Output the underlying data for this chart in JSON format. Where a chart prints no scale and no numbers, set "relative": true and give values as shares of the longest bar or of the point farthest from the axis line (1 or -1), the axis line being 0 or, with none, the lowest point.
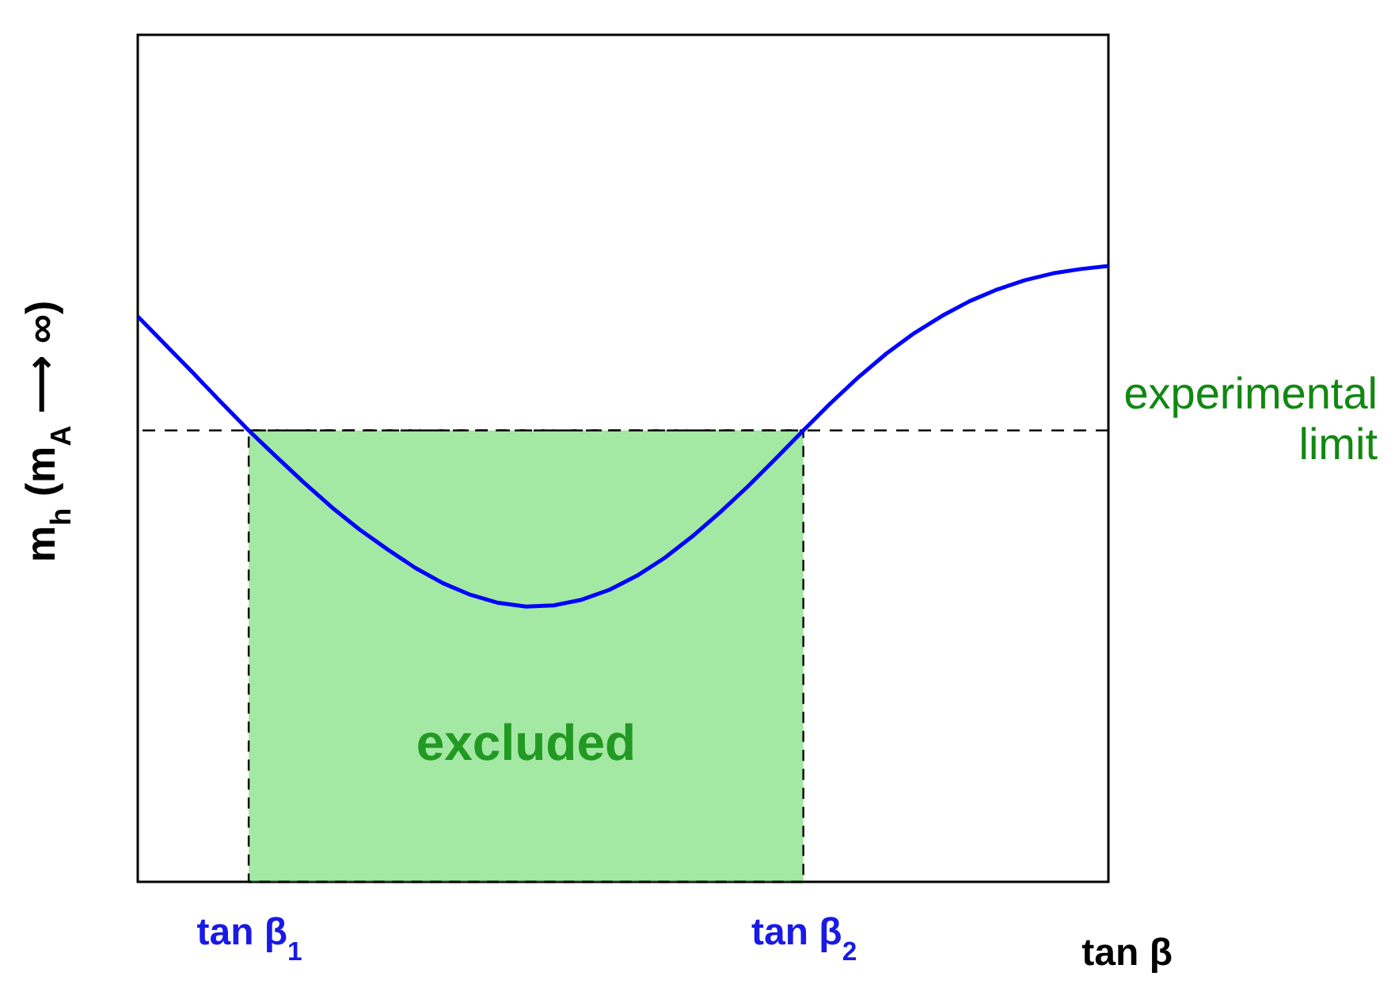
{
  "chart_data": {
    "type": "line",
    "relative": true,
    "xlabel": "tan β",
    "ylabel": "m$_{h}$  (m$_{A}$ ⟶ ∞)",
    "categories": [
      null,
      null,
      null,
      null,
      "tan β$_{1}$",
      null,
      null,
      null,
      null,
      null,
      null,
      null,
      null,
      null,
      null,
      null,
      null,
      null,
      null,
      null,
      null,
      null,
      null,
      null,
      "tan β$_{2}$",
      null,
      null,
      null,
      null,
      null,
      null,
      null,
      null,
      null,
      null,
      null
    ],
    "series": [
      {
        "color": "#0000ff",
        "values": [
          0.918,
          0.872,
          0.826,
          0.779,
          0.733,
          0.69,
          0.648,
          0.608,
          0.572,
          0.54,
          0.51,
          0.485,
          0.466,
          0.453,
          0.447,
          0.449,
          0.458,
          0.474,
          0.497,
          0.526,
          0.561,
          0.6,
          0.642,
          0.687,
          0.733,
          0.778,
          0.82,
          0.858,
          0.891,
          0.919,
          0.943,
          0.962,
          0.977,
          0.988,
          0.995,
          1.0
        ]
      }
    ],
    "ref_lines": [
      {
        "axis": "y",
        "value": 0.733,
        "label": "experimental limit",
        "line_style": "dashed"
      }
    ],
    "bands": [
      {
        "axis": "x",
        "from": "tan β$_{1}$",
        "to": "tan β$_{2}$",
        "label": "excluded",
        "color": "#33cc33"
      }
    ],
    "tick_labels": "x",
    "grid": false
  }
}
